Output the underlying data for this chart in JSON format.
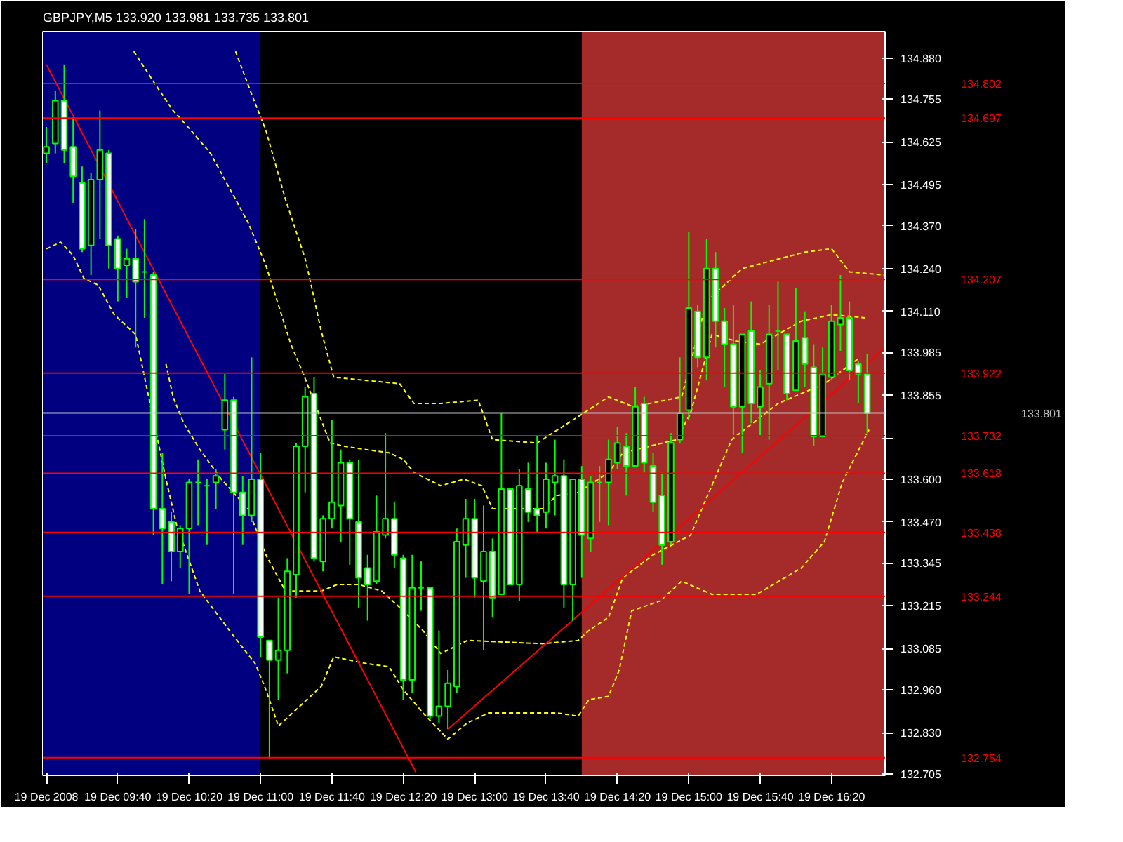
{
  "chart_data": {
    "type": "candlestick",
    "title": "GBPJPY,M5  133.920 133.981 133.735 133.801",
    "color": "#00ff00",
    "x": [
      "2008-12-19T09:00",
      "2008-12-19T09:05",
      "2008-12-19T09:10",
      "2008-12-19T09:15",
      "2008-12-19T09:20",
      "2008-12-19T09:25",
      "2008-12-19T09:30",
      "2008-12-19T09:35",
      "2008-12-19T09:40",
      "2008-12-19T09:45",
      "2008-12-19T09:50",
      "2008-12-19T09:55",
      "2008-12-19T10:00",
      "2008-12-19T10:05",
      "2008-12-19T10:10",
      "2008-12-19T10:15",
      "2008-12-19T10:20",
      "2008-12-19T10:25",
      "2008-12-19T10:30",
      "2008-12-19T10:35",
      "2008-12-19T10:40",
      "2008-12-19T10:45",
      "2008-12-19T10:50",
      "2008-12-19T10:55",
      "2008-12-19T11:00",
      "2008-12-19T11:05",
      "2008-12-19T11:10",
      "2008-12-19T11:15",
      "2008-12-19T11:20",
      "2008-12-19T11:25",
      "2008-12-19T11:30",
      "2008-12-19T11:35",
      "2008-12-19T11:40",
      "2008-12-19T11:45",
      "2008-12-19T11:50",
      "2008-12-19T11:55",
      "2008-12-19T12:00",
      "2008-12-19T12:05",
      "2008-12-19T12:10",
      "2008-12-19T12:15",
      "2008-12-19T12:20",
      "2008-12-19T12:25",
      "2008-12-19T12:30",
      "2008-12-19T12:35",
      "2008-12-19T12:40",
      "2008-12-19T12:45",
      "2008-12-19T12:50",
      "2008-12-19T12:55",
      "2008-12-19T13:00",
      "2008-12-19T13:05",
      "2008-12-19T13:10",
      "2008-12-19T13:15",
      "2008-12-19T13:20",
      "2008-12-19T13:25",
      "2008-12-19T13:30",
      "2008-12-19T13:35",
      "2008-12-19T13:40",
      "2008-12-19T13:45",
      "2008-12-19T13:50",
      "2008-12-19T13:55",
      "2008-12-19T14:00",
      "2008-12-19T14:05",
      "2008-12-19T14:10",
      "2008-12-19T14:15",
      "2008-12-19T14:20",
      "2008-12-19T14:25",
      "2008-12-19T14:30",
      "2008-12-19T14:35",
      "2008-12-19T14:40",
      "2008-12-19T14:45",
      "2008-12-19T14:50",
      "2008-12-19T14:55",
      "2008-12-19T15:00",
      "2008-12-19T15:05",
      "2008-12-19T15:10",
      "2008-12-19T15:15",
      "2008-12-19T15:20",
      "2008-12-19T15:25",
      "2008-12-19T15:30",
      "2008-12-19T15:35",
      "2008-12-19T15:40",
      "2008-12-19T15:45",
      "2008-12-19T15:50",
      "2008-12-19T15:55",
      "2008-12-19T16:00",
      "2008-12-19T16:05",
      "2008-12-19T16:10",
      "2008-12-19T16:15",
      "2008-12-19T16:20",
      "2008-12-19T16:25",
      "2008-12-19T16:30",
      "2008-12-19T16:35",
      "2008-12-19T16:40"
    ],
    "ohlc": [
      [
        134.59,
        134.67,
        134.56,
        134.61
      ],
      [
        134.62,
        134.78,
        134.59,
        134.75
      ],
      [
        134.75,
        134.86,
        134.56,
        134.6
      ],
      [
        134.61,
        134.7,
        134.44,
        134.52
      ],
      [
        134.5,
        134.55,
        134.29,
        134.3
      ],
      [
        134.31,
        134.53,
        134.22,
        134.51
      ],
      [
        134.51,
        134.72,
        134.33,
        134.6
      ],
      [
        134.59,
        134.6,
        134.24,
        134.31
      ],
      [
        134.33,
        134.34,
        134.14,
        134.24
      ],
      [
        134.25,
        134.3,
        134.15,
        134.27
      ],
      [
        134.27,
        134.36,
        134.0,
        134.2
      ],
      [
        134.23,
        134.39,
        134.09,
        134.23
      ],
      [
        134.22,
        134.23,
        133.43,
        133.51
      ],
      [
        133.51,
        133.68,
        133.28,
        133.45
      ],
      [
        133.47,
        133.5,
        133.29,
        133.38
      ],
      [
        133.38,
        133.46,
        133.33,
        133.45
      ],
      [
        133.45,
        133.6,
        133.25,
        133.59
      ],
      [
        133.59,
        133.66,
        133.46,
        133.59
      ],
      [
        133.58,
        133.6,
        133.4,
        133.58
      ],
      [
        133.59,
        133.63,
        133.51,
        133.61
      ],
      [
        133.75,
        133.92,
        133.69,
        133.84
      ],
      [
        133.84,
        133.85,
        133.25,
        133.56
      ],
      [
        133.56,
        133.61,
        133.4,
        133.49
      ],
      [
        133.49,
        133.97,
        133.47,
        133.6
      ],
      [
        133.6,
        133.68,
        133.06,
        133.12
      ],
      [
        133.11,
        133.11,
        132.75,
        133.05
      ],
      [
        133.05,
        133.24,
        132.93,
        133.08
      ],
      [
        133.08,
        133.36,
        133.01,
        133.32
      ],
      [
        133.31,
        133.71,
        133.24,
        133.7
      ],
      [
        133.7,
        133.88,
        133.56,
        133.85
      ],
      [
        133.86,
        133.91,
        133.35,
        133.36
      ],
      [
        133.35,
        133.49,
        133.32,
        133.48
      ],
      [
        133.48,
        133.78,
        133.45,
        133.53
      ],
      [
        133.52,
        133.69,
        133.41,
        133.65
      ],
      [
        133.65,
        133.66,
        133.34,
        133.48
      ],
      [
        133.47,
        133.66,
        133.21,
        133.3
      ],
      [
        133.33,
        133.37,
        133.17,
        133.28
      ],
      [
        133.29,
        133.55,
        133.28,
        133.44
      ],
      [
        133.43,
        133.74,
        133.42,
        133.48
      ],
      [
        133.48,
        133.53,
        133.33,
        133.37
      ],
      [
        133.36,
        133.37,
        132.93,
        132.99
      ],
      [
        132.99,
        133.37,
        132.95,
        133.27
      ],
      [
        133.27,
        133.35,
        133.2,
        133.27
      ],
      [
        133.27,
        133.27,
        132.87,
        132.88
      ],
      [
        132.88,
        133.14,
        132.86,
        132.91
      ],
      [
        132.91,
        133.02,
        132.84,
        132.98
      ],
      [
        132.97,
        133.45,
        132.95,
        133.41
      ],
      [
        133.4,
        133.54,
        133.3,
        133.48
      ],
      [
        133.48,
        133.54,
        133.24,
        133.3
      ],
      [
        133.29,
        133.52,
        133.08,
        133.38
      ],
      [
        133.38,
        133.42,
        133.18,
        133.24
      ],
      [
        133.25,
        133.8,
        133.25,
        133.57
      ],
      [
        133.57,
        133.57,
        133.28,
        133.28
      ],
      [
        133.28,
        133.63,
        133.23,
        133.58
      ],
      [
        133.57,
        133.65,
        133.47,
        133.5
      ],
      [
        133.51,
        133.73,
        133.44,
        133.49
      ],
      [
        133.5,
        133.65,
        133.45,
        133.6
      ],
      [
        133.59,
        133.72,
        133.49,
        133.61
      ],
      [
        133.61,
        133.66,
        133.21,
        133.28
      ],
      [
        133.28,
        133.6,
        133.17,
        133.6
      ],
      [
        133.6,
        133.64,
        133.3,
        133.43
      ],
      [
        133.42,
        133.61,
        133.38,
        133.59
      ],
      [
        133.59,
        133.64,
        133.47,
        133.59
      ],
      [
        133.59,
        133.72,
        133.46,
        133.66
      ],
      [
        133.65,
        133.76,
        133.63,
        133.71
      ],
      [
        133.7,
        133.74,
        133.55,
        133.64
      ],
      [
        133.64,
        133.88,
        133.64,
        133.82
      ],
      [
        133.83,
        133.85,
        133.62,
        133.65
      ],
      [
        133.64,
        133.68,
        133.5,
        133.53
      ],
      [
        133.55,
        133.62,
        133.34,
        133.4
      ],
      [
        133.41,
        133.74,
        133.4,
        133.71
      ],
      [
        133.72,
        133.97,
        133.71,
        133.8
      ],
      [
        133.81,
        134.35,
        133.78,
        134.12
      ],
      [
        134.11,
        134.13,
        133.94,
        133.97
      ],
      [
        133.97,
        134.33,
        133.9,
        134.24
      ],
      [
        134.24,
        134.29,
        134.0,
        134.08
      ],
      [
        134.08,
        134.12,
        133.88,
        134.01
      ],
      [
        134.01,
        134.13,
        133.73,
        133.82
      ],
      [
        133.82,
        134.04,
        133.68,
        134.04
      ],
      [
        134.05,
        134.14,
        133.77,
        133.83
      ],
      [
        133.82,
        133.93,
        133.73,
        133.88
      ],
      [
        133.89,
        134.13,
        133.72,
        134.04
      ],
      [
        134.05,
        134.2,
        133.93,
        134.05
      ],
      [
        134.04,
        134.04,
        133.84,
        133.86
      ],
      [
        133.87,
        134.18,
        133.87,
        134.02
      ],
      [
        134.03,
        134.11,
        133.88,
        133.95
      ],
      [
        133.94,
        134.01,
        133.7,
        133.73
      ],
      [
        133.73,
        134.0,
        133.73,
        133.92
      ],
      [
        133.91,
        134.13,
        133.9,
        134.08
      ],
      [
        134.07,
        134.22,
        133.99,
        134.09
      ],
      [
        134.09,
        134.14,
        133.9,
        133.93
      ],
      [
        133.95,
        133.96,
        133.83,
        133.92
      ],
      [
        133.92,
        133.98,
        133.74,
        133.8
      ]
    ],
    "series": [
      {
        "type": "line",
        "color": "#ffff00",
        "line_style": "dashed",
        "x": [
          "2008-12-19T10:46",
          "2008-12-19T10:55",
          "2008-12-19T11:03",
          "2008-12-19T11:14",
          "2008-12-19T11:25",
          "2008-12-19T11:28",
          "2008-12-19T11:34",
          "2008-12-19T11:41",
          "2008-12-19T12:18",
          "2008-12-19T12:26",
          "2008-12-19T12:41",
          "2008-12-19T13:02",
          "2008-12-19T13:10",
          "2008-12-19T13:35",
          "2008-12-19T13:58",
          "2008-12-19T14:15",
          "2008-12-19T14:29",
          "2008-12-19T14:56",
          "2008-12-19T15:10",
          "2008-12-19T15:30",
          "2008-12-19T16:05",
          "2008-12-19T16:20",
          "2008-12-19T16:30",
          "2008-12-19T16:50"
        ],
        "values": [
          134.9,
          134.77,
          134.66,
          134.45,
          134.27,
          134.2,
          134.05,
          133.91,
          133.89,
          133.83,
          133.83,
          133.84,
          133.72,
          133.71,
          133.79,
          133.85,
          133.82,
          133.85,
          134.14,
          134.24,
          134.29,
          134.3,
          134.23,
          134.22
        ]
      },
      {
        "type": "line",
        "color": "#ffff00",
        "line_style": "dashed",
        "x": [
          "2008-12-19T09:49",
          "2008-12-19T10:01",
          "2008-12-19T10:11",
          "2008-12-19T10:21",
          "2008-12-19T10:32",
          "2008-12-19T10:43",
          "2008-12-19T10:53",
          "2008-12-19T11:03",
          "2008-12-19T11:10",
          "2008-12-19T11:17",
          "2008-12-19T11:24",
          "2008-12-19T11:39",
          "2008-12-19T11:47",
          "2008-12-19T11:59",
          "2008-12-19T12:12",
          "2008-12-19T12:20",
          "2008-12-19T12:26",
          "2008-12-19T12:41",
          "2008-12-19T12:54",
          "2008-12-19T13:04",
          "2008-12-19T13:10",
          "2008-12-19T13:38",
          "2008-12-19T13:46",
          "2008-12-19T13:58",
          "2008-12-19T14:15",
          "2008-12-19T14:23",
          "2008-12-19T14:53",
          "2008-12-19T15:01",
          "2008-12-19T15:13",
          "2008-12-19T15:26",
          "2008-12-19T15:40",
          "2008-12-19T16:03",
          "2008-12-19T16:20",
          "2008-12-19T16:39"
        ],
        "values": [
          134.9,
          134.8,
          134.72,
          134.66,
          134.59,
          134.48,
          134.38,
          134.25,
          134.13,
          134.01,
          133.92,
          133.71,
          133.7,
          133.69,
          133.68,
          133.66,
          133.62,
          133.58,
          133.6,
          133.58,
          133.51,
          133.51,
          133.55,
          133.56,
          133.62,
          133.68,
          133.72,
          133.8,
          134.04,
          134.02,
          134.01,
          134.08,
          134.1,
          134.09
        ]
      },
      {
        "type": "line",
        "color": "#ffff00",
        "line_style": "dashed",
        "x": [
          "2008-12-19T10:07",
          "2008-12-19T10:11",
          "2008-12-19T10:17",
          "2008-12-19T10:26",
          "2008-12-19T10:38",
          "2008-12-19T10:53",
          "2008-12-19T11:03",
          "2008-12-19T11:14",
          "2008-12-19T11:34",
          "2008-12-19T11:43",
          "2008-12-19T11:55",
          "2008-12-19T12:08",
          "2008-12-19T12:20",
          "2008-12-19T12:31",
          "2008-12-19T12:41",
          "2008-12-19T12:56",
          "2008-12-19T13:38",
          "2008-12-19T13:58",
          "2008-12-19T14:04",
          "2008-12-19T14:15",
          "2008-12-19T14:23",
          "2008-12-19T14:40",
          "2008-12-19T15:01",
          "2008-12-19T15:24",
          "2008-12-19T15:50",
          "2008-12-19T16:16",
          "2008-12-19T16:36"
        ],
        "values": [
          133.95,
          133.85,
          133.77,
          133.69,
          133.6,
          133.51,
          133.37,
          133.26,
          133.26,
          133.28,
          133.28,
          133.26,
          133.2,
          133.14,
          133.07,
          133.11,
          133.1,
          133.11,
          133.14,
          133.18,
          133.3,
          133.37,
          133.43,
          133.72,
          133.83,
          133.89,
          133.97
        ]
      },
      {
        "type": "line",
        "color": "#ffff00",
        "line_style": "dashed",
        "x": [
          "2008-12-19T09:00",
          "2008-12-19T09:08",
          "2008-12-19T09:15",
          "2008-12-19T09:21",
          "2008-12-19T09:29",
          "2008-12-19T09:38",
          "2008-12-19T09:50",
          "2008-12-19T10:07",
          "2008-12-19T10:13",
          "2008-12-19T10:26",
          "2008-12-19T10:44",
          "2008-12-19T10:57",
          "2008-12-19T11:03",
          "2008-12-19T11:10",
          "2008-12-19T11:22",
          "2008-12-19T11:34",
          "2008-12-19T11:41",
          "2008-12-19T11:59",
          "2008-12-19T12:12",
          "2008-12-19T12:20",
          "2008-12-19T12:31",
          "2008-12-19T12:45",
          "2008-12-19T12:56",
          "2008-12-19T13:08",
          "2008-12-19T13:46",
          "2008-12-19T13:58",
          "2008-12-19T14:04",
          "2008-12-19T14:15",
          "2008-12-19T14:21",
          "2008-12-19T14:28",
          "2008-12-19T14:44",
          "2008-12-19T14:56",
          "2008-12-19T15:13",
          "2008-12-19T15:38",
          "2008-12-19T16:03",
          "2008-12-19T16:16",
          "2008-12-19T16:26",
          "2008-12-19T16:41"
        ],
        "values": [
          134.3,
          134.32,
          134.28,
          134.21,
          134.19,
          134.1,
          134.04,
          133.6,
          133.46,
          133.26,
          133.13,
          133.04,
          132.96,
          132.85,
          132.91,
          132.97,
          133.06,
          133.04,
          133.03,
          132.96,
          132.89,
          132.81,
          132.86,
          132.89,
          132.89,
          132.88,
          132.93,
          132.94,
          133.02,
          133.2,
          133.23,
          133.29,
          133.25,
          133.25,
          133.33,
          133.41,
          133.59,
          133.75
        ]
      },
      {
        "type": "line",
        "color": "#ff0000",
        "line_style": "solid",
        "x": [
          "2008-12-19T09:00",
          "2008-12-19T12:27"
        ],
        "values": [
          134.86,
          132.71
        ]
      },
      {
        "type": "line",
        "color": "#ff0000",
        "line_style": "solid",
        "x": [
          "2008-12-19T12:45",
          "2008-12-19T16:50"
        ],
        "values": [
          132.84,
          134.0
        ]
      }
    ],
    "bands": [
      {
        "axis": "x",
        "from": "2008-12-19T08:58",
        "to": "2008-12-19T11:00",
        "color": "#000080"
      },
      {
        "axis": "x",
        "from": "2008-12-19T14:00",
        "to": "2008-12-19T16:50",
        "color": "#a52a2a"
      }
    ],
    "ref_lines": [
      {
        "axis": "y",
        "value": 134.802,
        "label": "134.802",
        "color": "#ff0000"
      },
      {
        "axis": "y",
        "value": 134.697,
        "label": "134.697",
        "color": "#ff0000"
      },
      {
        "axis": "y",
        "value": 134.207,
        "label": "134.207",
        "color": "#ff0000"
      },
      {
        "axis": "y",
        "value": 133.922,
        "label": "133.922",
        "color": "#ff0000"
      },
      {
        "axis": "y",
        "value": 133.801,
        "label": "133.801",
        "color": "#c0c0c0"
      },
      {
        "axis": "y",
        "value": 133.732,
        "label": "133.732",
        "color": "#ff0000"
      },
      {
        "axis": "y",
        "value": 133.618,
        "label": "133.618",
        "color": "#ff0000"
      },
      {
        "axis": "y",
        "value": 133.438,
        "label": "133.438",
        "color": "#ff0000"
      },
      {
        "axis": "y",
        "value": 133.244,
        "label": "133.244",
        "color": "#ff0000"
      },
      {
        "axis": "y",
        "value": 132.754,
        "label": "132.754",
        "color": "#ff0000"
      }
    ],
    "xlim": [
      "2008-12-19T08:58",
      "2008-12-19T16:50"
    ],
    "ylim": [
      132.7,
      134.96
    ],
    "xticks": [
      {
        "value": "2008-12-19T09:00",
        "label": "19 Dec 2008"
      },
      {
        "value": "2008-12-19T09:40",
        "label": "19 Dec 09:40"
      },
      {
        "value": "2008-12-19T10:20",
        "label": "19 Dec 10:20"
      },
      {
        "value": "2008-12-19T11:00",
        "label": "19 Dec 11:00"
      },
      {
        "value": "2008-12-19T11:40",
        "label": "19 Dec 11:40"
      },
      {
        "value": "2008-12-19T12:20",
        "label": "19 Dec 12:20"
      },
      {
        "value": "2008-12-19T13:00",
        "label": "19 Dec 13:00"
      },
      {
        "value": "2008-12-19T13:40",
        "label": "19 Dec 13:40"
      },
      {
        "value": "2008-12-19T14:20",
        "label": "19 Dec 14:20"
      },
      {
        "value": "2008-12-19T15:00",
        "label": "19 Dec 15:00"
      },
      {
        "value": "2008-12-19T15:40",
        "label": "19 Dec 15:40"
      },
      {
        "value": "2008-12-19T16:20",
        "label": "19 Dec 16:20"
      }
    ],
    "yticks": [
      {
        "value": 134.88,
        "label": "134.880"
      },
      {
        "value": 134.755,
        "label": "134.755"
      },
      {
        "value": 134.625,
        "label": "134.625"
      },
      {
        "value": 134.495,
        "label": "134.495"
      },
      {
        "value": 134.37,
        "label": "134.370"
      },
      {
        "value": 134.24,
        "label": "134.240"
      },
      {
        "value": 134.11,
        "label": "134.110"
      },
      {
        "value": 133.985,
        "label": "133.985"
      },
      {
        "value": 133.855,
        "label": "133.855"
      },
      {
        "value": 133.725,
        "label": null
      },
      {
        "value": 133.6,
        "label": "133.600"
      },
      {
        "value": 133.47,
        "label": "133.470"
      },
      {
        "value": 133.345,
        "label": "133.345"
      },
      {
        "value": 133.215,
        "label": "133.215"
      },
      {
        "value": 133.085,
        "label": "133.085"
      },
      {
        "value": 132.96,
        "label": "132.960"
      },
      {
        "value": 132.83,
        "label": "132.830"
      },
      {
        "value": 132.705,
        "label": "132.705"
      }
    ]
  }
}
